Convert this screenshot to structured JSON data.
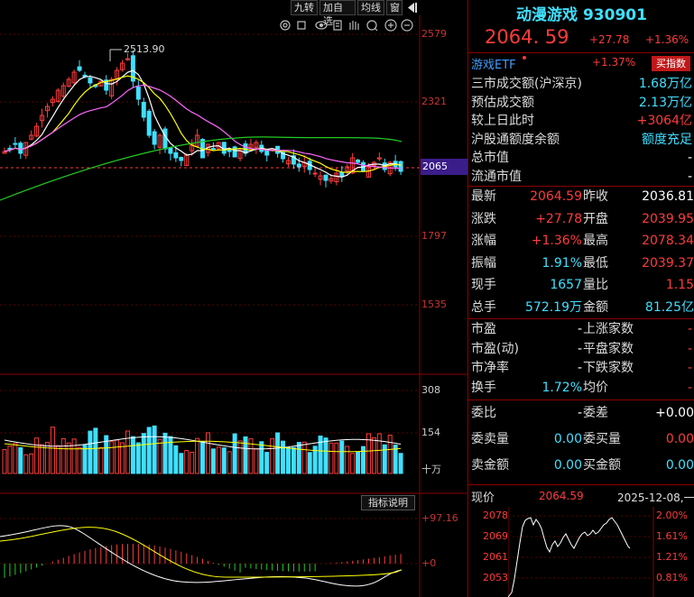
{
  "toolbar": {
    "buttons": [
      "九转",
      "加自选",
      "均线",
      "窗"
    ]
  },
  "main_chart": {
    "y_ticks": [
      "2579",
      "2321",
      "2065",
      "1797",
      "1535"
    ],
    "high_marker": "2513.90",
    "current_price_tag": "2065"
  },
  "volume_chart": {
    "y_ticks": [
      "308",
      "154",
      "十万"
    ]
  },
  "indicator_chart": {
    "help_label": "指标说明",
    "y_ticks": [
      "+97.16",
      "+0"
    ]
  },
  "quote": {
    "title": "动漫游戏 930901",
    "price": "2064. 59",
    "change": "+27.78",
    "change_pct": "+1.36%"
  },
  "etf": {
    "name": "游戏ETF",
    "pct": "+1.37%",
    "buy_button": "买指数"
  },
  "market_info": [
    {
      "label": "三市成交额(沪深京)",
      "value": "1.68万亿",
      "color": "cyan"
    },
    {
      "label": "预估成交额",
      "value": "2.13万亿",
      "color": "cyan"
    },
    {
      "label": "较上日此时",
      "value": "+3064亿",
      "color": "red"
    },
    {
      "label": "沪股通额度余额",
      "value": "额度充足",
      "color": "cyan"
    },
    {
      "label": "总市值",
      "value": "-",
      "color": "white"
    },
    {
      "label": "流通市值",
      "value": "-",
      "color": "white"
    }
  ],
  "stats": [
    {
      "k1": "最新",
      "v1": "2064.59",
      "c1": "red",
      "k2": "昨收",
      "v2": "2036.81",
      "c2": "white"
    },
    {
      "k1": "涨跌",
      "v1": "+27.78",
      "c1": "red",
      "k2": "开盘",
      "v2": "2039.95",
      "c2": "red"
    },
    {
      "k1": "涨幅",
      "v1": "+1.36%",
      "c1": "red",
      "k2": "最高",
      "v2": "2078.34",
      "c2": "red"
    },
    {
      "k1": "振幅",
      "v1": "1.91%",
      "c1": "cyan",
      "k2": "最低",
      "v2": "2039.37",
      "c2": "red"
    },
    {
      "k1": "现手",
      "v1": "1657",
      "c1": "cyan",
      "k2": "量比",
      "v2": "1.15",
      "c2": "red"
    },
    {
      "k1": "总手",
      "v1": "572.19万",
      "c1": "cyan",
      "k2": "金额",
      "v2": "81.25亿",
      "c2": "cyan"
    }
  ],
  "counts": [
    {
      "k1": "市盈",
      "v1": "-",
      "k2": "上涨家数",
      "v2": "-"
    },
    {
      "k1": "市盈(动)",
      "v1": "-",
      "k2": "平盘家数",
      "v2": "-"
    },
    {
      "k1": "市净率",
      "v1": "-",
      "k2": "下跌家数",
      "v2": "-"
    },
    {
      "k1": "换手",
      "v1": "1.72%",
      "k2": "均价",
      "v2": "-"
    }
  ],
  "orders": [
    {
      "k1": "委比",
      "v1": "-",
      "c1": "white",
      "k2": "委差",
      "v2": "+0.00",
      "c2": "white"
    },
    {
      "k1": "委卖量",
      "v1": "0.00",
      "c1": "cyan",
      "k2": "委买量",
      "v2": "0.00",
      "c2": "red"
    },
    {
      "k1": "卖金额",
      "v1": "0.00",
      "c1": "cyan",
      "k2": "买金额",
      "v2": "0.00",
      "c2": "cyan"
    }
  ],
  "intraday": {
    "label": "现价",
    "price": "2064.59",
    "date": "2025-12-08,一",
    "price_ticks": [
      "2078",
      "2069",
      "2061",
      "2053"
    ],
    "pct_ticks": [
      "2.00%",
      "1.61%",
      "1.21%",
      "0.81%"
    ]
  },
  "colors": {
    "up": "#ff3b3b",
    "down": "#3fe0ff",
    "accent": "#8b0000"
  }
}
